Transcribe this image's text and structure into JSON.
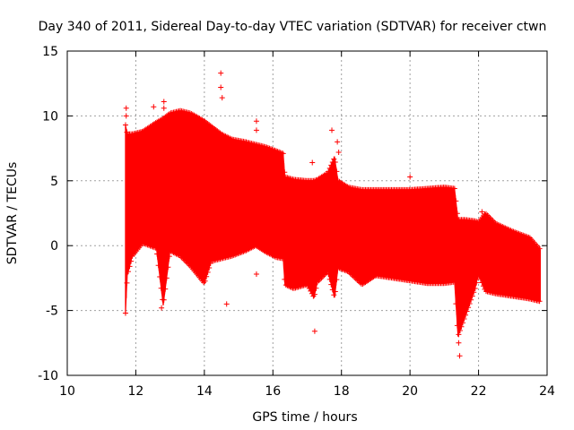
{
  "chart_data": {
    "type": "scatter",
    "title": "Day 340 of 2011, Sidereal Day-to-day VTEC variation (SDTVAR) for receiver ctwn",
    "xlabel": "GPS time / hours",
    "ylabel": "SDTVAR / TECUs",
    "xlim": [
      10,
      24
    ],
    "ylim": [
      -10,
      15
    ],
    "xticks": [
      10,
      12,
      14,
      16,
      18,
      20,
      22,
      24
    ],
    "yticks": [
      -10,
      -5,
      0,
      5,
      10,
      15
    ],
    "grid": true,
    "series": [
      {
        "name": "SDTVAR",
        "color": "#ff0000",
        "marker": "plus",
        "envelope_x": [
          11.7,
          11.75,
          11.9,
          12.2,
          12.6,
          12.8,
          13.0,
          13.3,
          13.6,
          14.0,
          14.2,
          14.5,
          14.8,
          15.2,
          15.5,
          15.8,
          16.1,
          16.3,
          16.35,
          16.6,
          17.0,
          17.2,
          17.3,
          17.6,
          17.8,
          17.9,
          18.2,
          18.6,
          19.0,
          19.5,
          20.0,
          20.5,
          21.0,
          21.3,
          21.4,
          21.6,
          21.9,
          22.0,
          22.2,
          22.5,
          23.0,
          23.5,
          23.8
        ],
        "envelope_upper": [
          9.3,
          8.6,
          8.6,
          8.8,
          9.5,
          9.8,
          10.2,
          10.4,
          10.2,
          9.6,
          9.2,
          8.6,
          8.2,
          8.0,
          7.8,
          7.6,
          7.3,
          7.1,
          5.3,
          5.1,
          5.0,
          5.0,
          5.1,
          5.6,
          6.8,
          5.0,
          4.5,
          4.3,
          4.3,
          4.3,
          4.3,
          4.4,
          4.5,
          4.4,
          2.0,
          2.0,
          1.9,
          1.8,
          2.5,
          1.7,
          1.1,
          0.6,
          -0.3
        ],
        "envelope_lower": [
          -5.2,
          -2.3,
          -0.8,
          0.2,
          -0.2,
          -4.6,
          -0.4,
          -0.8,
          -1.6,
          -2.9,
          -1.2,
          -1.0,
          -0.8,
          -0.4,
          0.0,
          -0.5,
          -0.9,
          -1.0,
          -3.0,
          -3.3,
          -3.0,
          -4.0,
          -2.8,
          -2.0,
          -4.0,
          -1.7,
          -2.0,
          -3.0,
          -2.3,
          -2.5,
          -2.7,
          -2.9,
          -2.9,
          -2.8,
          -7.0,
          -5.5,
          -3.3,
          -2.2,
          -3.5,
          -3.7,
          -3.9,
          -4.1,
          -4.3
        ],
        "outliers": [
          {
            "x": 11.72,
            "y": 10.6
          },
          {
            "x": 11.72,
            "y": 10.0
          },
          {
            "x": 12.52,
            "y": 10.7
          },
          {
            "x": 12.82,
            "y": 11.1
          },
          {
            "x": 12.82,
            "y": 10.6
          },
          {
            "x": 14.48,
            "y": 13.3
          },
          {
            "x": 14.48,
            "y": 12.2
          },
          {
            "x": 14.52,
            "y": 11.4
          },
          {
            "x": 15.52,
            "y": 9.6
          },
          {
            "x": 15.52,
            "y": 8.9
          },
          {
            "x": 15.52,
            "y": -2.2
          },
          {
            "x": 14.65,
            "y": -4.5
          },
          {
            "x": 17.22,
            "y": -6.6
          },
          {
            "x": 17.15,
            "y": 6.4
          },
          {
            "x": 17.72,
            "y": 8.9
          },
          {
            "x": 17.88,
            "y": 8.0
          },
          {
            "x": 17.92,
            "y": 7.2
          },
          {
            "x": 20.0,
            "y": 5.3
          },
          {
            "x": 21.45,
            "y": -8.5
          },
          {
            "x": 21.42,
            "y": -7.5
          },
          {
            "x": 22.1,
            "y": 2.6
          },
          {
            "x": 11.7,
            "y": -5.2
          },
          {
            "x": 12.75,
            "y": -4.8
          }
        ]
      }
    ]
  }
}
